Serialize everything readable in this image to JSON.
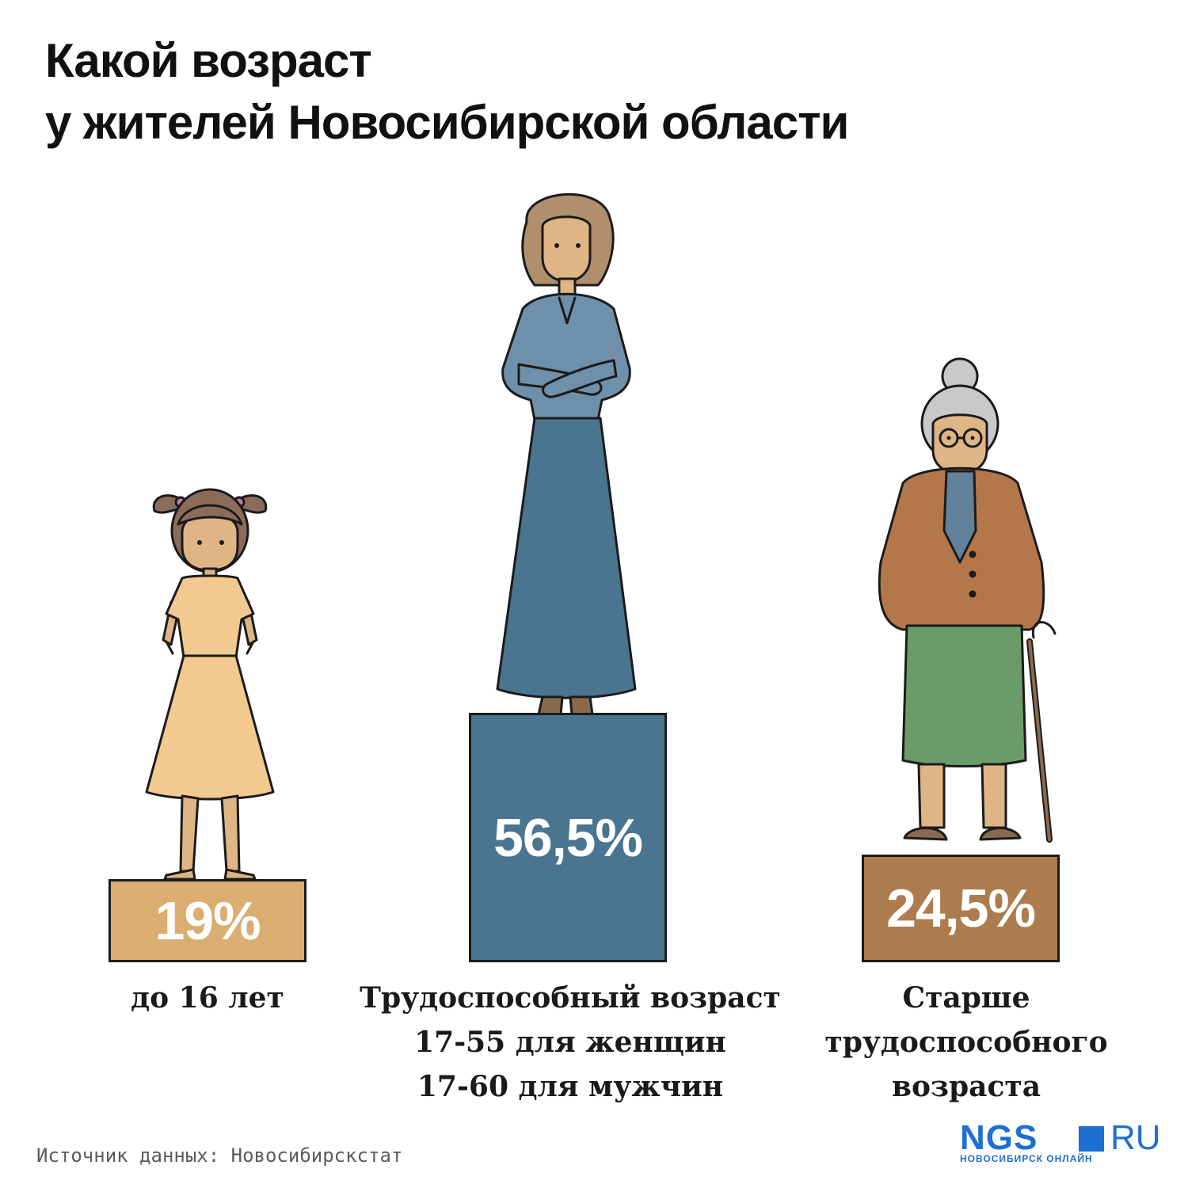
{
  "title": {
    "line1": "Какой возраст",
    "line2": "у жителей Новосибирской области"
  },
  "chart_data": {
    "type": "bar",
    "title": "Какой возраст у жителей Новосибирской области",
    "unit": "%",
    "categories": [
      "до 16 лет",
      "Трудоспособный возраст 17-55 для женщин 17-60 для мужчин",
      "Старше трудоспособного возраста"
    ],
    "values": [
      19,
      56.5,
      24.5
    ],
    "value_labels": [
      "19%",
      "56,5%",
      "24,5%"
    ],
    "colors": [
      "#d9ae70",
      "#4a7590",
      "#ad7c4e"
    ],
    "figures": [
      "girl-figure",
      "woman-figure",
      "grandmother-figure"
    ]
  },
  "captions": {
    "child": [
      "до 16 лет"
    ],
    "working": [
      "Трудоспособный возраст",
      "17-55 для женщин",
      "17-60 для мужчин"
    ],
    "elderly": [
      "Старше",
      "трудоспособного",
      "возраста"
    ]
  },
  "source": "Источник данных: Новосибирскстат",
  "logo": {
    "main": "NGS",
    "tld": "RU",
    "subtitle": "НОВОСИБИРСК ОНЛАЙН",
    "color": "#1d6fd1"
  }
}
